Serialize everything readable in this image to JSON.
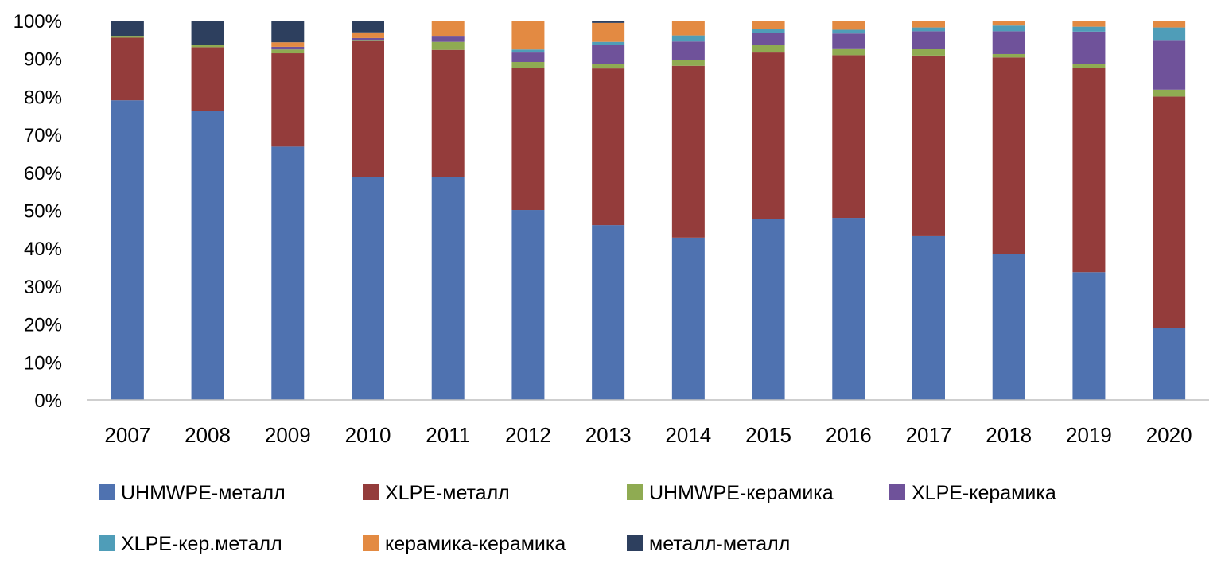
{
  "chart_data": {
    "type": "bar",
    "stacked": true,
    "categories": [
      "2007",
      "2008",
      "2009",
      "2010",
      "2011",
      "2012",
      "2013",
      "2014",
      "2015",
      "2016",
      "2017",
      "2018",
      "2019",
      "2020"
    ],
    "y_ticks": [
      "0%",
      "10%",
      "20%",
      "30%",
      "40%",
      "50%",
      "60%",
      "70%",
      "80%",
      "90%",
      "100%"
    ],
    "ylim": [
      0,
      100
    ],
    "grid": false,
    "legend_position": "bottom",
    "series": [
      {
        "name": "UHMWPE-металл",
        "color": "#4f72b0",
        "values": [
          79,
          76.3,
          66.8,
          58.9,
          58.8,
          50.1,
          46.1,
          42.8,
          47.6,
          48.0,
          43.2,
          38.4,
          33.7,
          18.9
        ]
      },
      {
        "name": "XLPE-металл",
        "color": "#943c3b",
        "values": [
          16.5,
          16.7,
          24.6,
          35.7,
          33.5,
          37.5,
          41.3,
          45.3,
          44.0,
          42.9,
          47.6,
          51.9,
          53.9,
          61.1
        ]
      },
      {
        "name": "UHMWPE-керамика",
        "color": "#8fab52",
        "values": [
          0.5,
          0.5,
          1.0,
          0.3,
          2.1,
          1.5,
          1.2,
          1.5,
          1.9,
          1.8,
          1.8,
          0.9,
          1.0,
          1.8
        ]
      },
      {
        "name": "XLPE-керамика",
        "color": "#6f529a",
        "values": [
          0,
          0,
          0.7,
          0.5,
          1.6,
          2.5,
          5.1,
          4.9,
          3.3,
          3.9,
          4.6,
          6.0,
          8.5,
          13.1
        ]
      },
      {
        "name": "XLPE-кер.металл",
        "color": "#4f9db8",
        "values": [
          0,
          0,
          0,
          0,
          0,
          0.8,
          0.7,
          1.6,
          1.0,
          1.0,
          1.0,
          1.5,
          1.3,
          3.3
        ]
      },
      {
        "name": "керамика-керамика",
        "color": "#e38a42",
        "values": [
          0,
          0.2,
          1.2,
          1.5,
          4.0,
          7.6,
          5.0,
          3.9,
          2.2,
          2.4,
          1.8,
          1.3,
          1.6,
          1.8
        ]
      },
      {
        "name": "металл-металл",
        "color": "#2d3f5e",
        "values": [
          4.0,
          6.3,
          5.7,
          3.1,
          0,
          0,
          0.6,
          0,
          0,
          0,
          0,
          0,
          0,
          0
        ]
      }
    ]
  }
}
